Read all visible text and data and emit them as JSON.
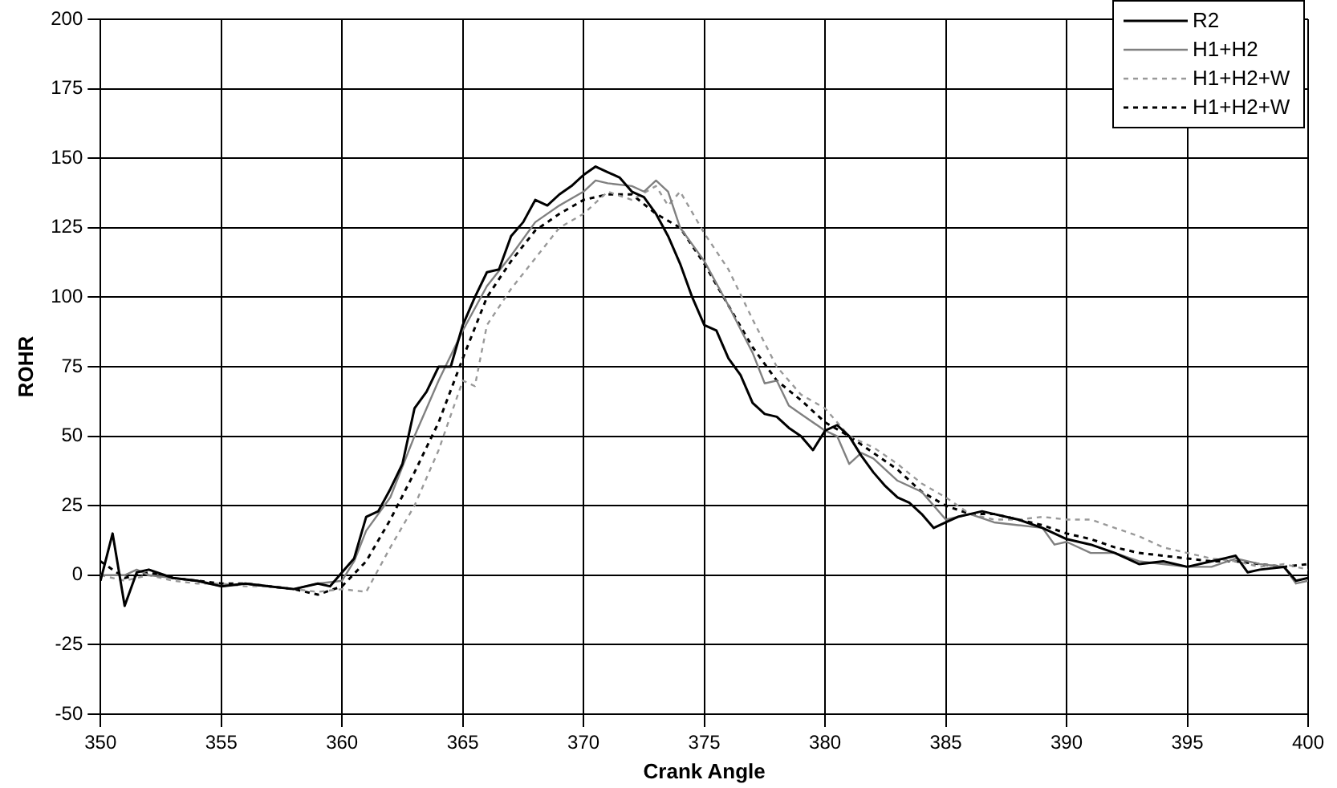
{
  "chart_data": {
    "type": "line",
    "xlabel": "Crank Angle",
    "ylabel": "ROHR",
    "xlim": [
      350,
      400
    ],
    "xticks": [
      350,
      355,
      360,
      365,
      370,
      375,
      380,
      385,
      390,
      395,
      400
    ],
    "ylim": [
      -50,
      200
    ],
    "yticks": [
      -50,
      -25,
      0,
      25,
      50,
      75,
      100,
      125,
      150,
      175,
      200
    ],
    "grid": true,
    "legend": "top right",
    "marker": "none",
    "series": [
      {
        "name": "R2",
        "color": "#000000",
        "line_style": "solid",
        "x": [
          350,
          350.5,
          351,
          351.5,
          352,
          353,
          354,
          355,
          356,
          357,
          358,
          359,
          359.5,
          360,
          360.5,
          361,
          361.5,
          362,
          362.5,
          363,
          363.5,
          364,
          364.5,
          365,
          365.5,
          366,
          366.5,
          367,
          367.5,
          368,
          368.5,
          369,
          369.5,
          370,
          370.5,
          371,
          371.5,
          372,
          372.5,
          373,
          373.5,
          374,
          374.5,
          375,
          375.5,
          376,
          376.5,
          377,
          377.5,
          378,
          378.5,
          379,
          379.5,
          380,
          380.5,
          381,
          381.5,
          382,
          382.5,
          383,
          383.5,
          384,
          384.5,
          385,
          385.5,
          386,
          386.5,
          387,
          388,
          389,
          390,
          391,
          392,
          393,
          394,
          395,
          396,
          397,
          397.5,
          398,
          399,
          399.5,
          400
        ],
        "values": [
          -2,
          15,
          -11,
          1,
          2,
          -1,
          -2,
          -4,
          -3,
          -4,
          -5,
          -3,
          -4,
          1,
          6,
          21,
          23,
          31,
          40,
          60,
          66,
          75,
          75,
          90,
          100,
          109,
          110,
          122,
          127,
          135,
          133,
          137,
          140,
          144,
          147,
          145,
          143,
          138,
          136,
          130,
          122,
          112,
          100,
          90,
          88,
          78,
          72,
          62,
          58,
          57,
          53,
          50,
          45,
          52,
          54,
          50,
          43,
          37,
          32,
          28,
          26,
          22,
          17,
          19,
          21,
          22,
          23,
          22,
          20,
          17,
          13,
          11,
          8,
          4,
          5,
          3,
          5,
          7,
          1,
          2,
          3,
          -2,
          -1
        ]
      },
      {
        "name": "H1+H2",
        "color": "#808080",
        "line_style": "solid",
        "x": [
          350,
          351,
          351.5,
          352,
          353,
          354,
          355,
          356,
          357,
          358,
          359,
          360,
          360.5,
          361,
          362,
          363,
          364,
          365,
          366,
          367,
          368,
          369,
          370,
          370.5,
          371,
          372,
          372.5,
          373,
          373.5,
          374,
          375,
          376,
          377,
          377.5,
          378,
          378.5,
          379,
          380,
          380.5,
          381,
          381.5,
          382,
          383,
          384,
          385,
          386,
          387,
          388,
          389,
          389.5,
          390,
          391,
          392,
          393,
          394,
          395,
          396,
          397,
          398,
          399,
          399.5,
          400
        ],
        "values": [
          0,
          0,
          2,
          0,
          -1,
          -2,
          -4,
          -3,
          -4,
          -5,
          -3,
          -2,
          5,
          16,
          28,
          50,
          70,
          88,
          104,
          115,
          127,
          133,
          138,
          142,
          141,
          140,
          138,
          142,
          138,
          125,
          113,
          97,
          80,
          69,
          70,
          61,
          58,
          52,
          50,
          40,
          44,
          42,
          34,
          30,
          20,
          22,
          19,
          18,
          17,
          11,
          12,
          8,
          8,
          5,
          4,
          3,
          3,
          6,
          4,
          3,
          -3,
          -2
        ]
      },
      {
        "name": "H1+H2+W",
        "color": "#999999",
        "line_style": "dotted",
        "x": [
          350,
          351,
          352,
          353,
          354,
          355,
          356,
          357,
          358,
          359,
          360,
          361,
          362,
          363,
          364,
          365,
          365.5,
          366,
          367,
          368,
          369,
          370,
          371,
          372,
          373,
          373.5,
          374,
          375,
          376,
          377,
          378,
          379,
          380,
          381,
          382,
          383,
          384,
          385,
          386,
          387,
          388,
          389,
          390,
          391,
          392,
          393,
          394,
          395,
          396,
          397,
          398,
          399,
          400
        ],
        "values": [
          0,
          -2,
          0,
          -2,
          -3,
          -3,
          -4,
          -4,
          -5,
          -6,
          -5,
          -6,
          10,
          25,
          45,
          70,
          68,
          90,
          103,
          114,
          125,
          130,
          138,
          135,
          140,
          133,
          138,
          123,
          110,
          92,
          75,
          65,
          60,
          50,
          46,
          40,
          33,
          28,
          22,
          20,
          20,
          21,
          20,
          20,
          17,
          14,
          10,
          8,
          6,
          5,
          3,
          4,
          2
        ]
      },
      {
        "name": "H1+H2+W",
        "color": "#000000",
        "line_style": "dotted",
        "x": [
          350,
          351,
          352,
          353,
          354,
          355,
          356,
          357,
          358,
          359,
          360,
          361,
          362,
          363,
          364,
          365,
          366,
          367,
          368,
          369,
          370,
          371,
          372,
          373,
          374,
          375,
          376,
          377,
          378,
          379,
          380,
          381,
          382,
          383,
          384,
          385,
          386,
          387,
          388,
          389,
          390,
          391,
          392,
          393,
          394,
          395,
          396,
          397,
          398,
          399,
          400
        ],
        "values": [
          5,
          -1,
          1,
          -1,
          -2,
          -3,
          -3,
          -4,
          -5,
          -7,
          -4,
          5,
          20,
          37,
          55,
          78,
          100,
          113,
          124,
          130,
          135,
          137,
          137,
          130,
          125,
          112,
          97,
          82,
          70,
          63,
          55,
          50,
          44,
          38,
          30,
          25,
          22,
          22,
          20,
          18,
          15,
          13,
          10,
          8,
          7,
          6,
          5,
          5,
          4,
          3,
          4
        ]
      }
    ]
  }
}
